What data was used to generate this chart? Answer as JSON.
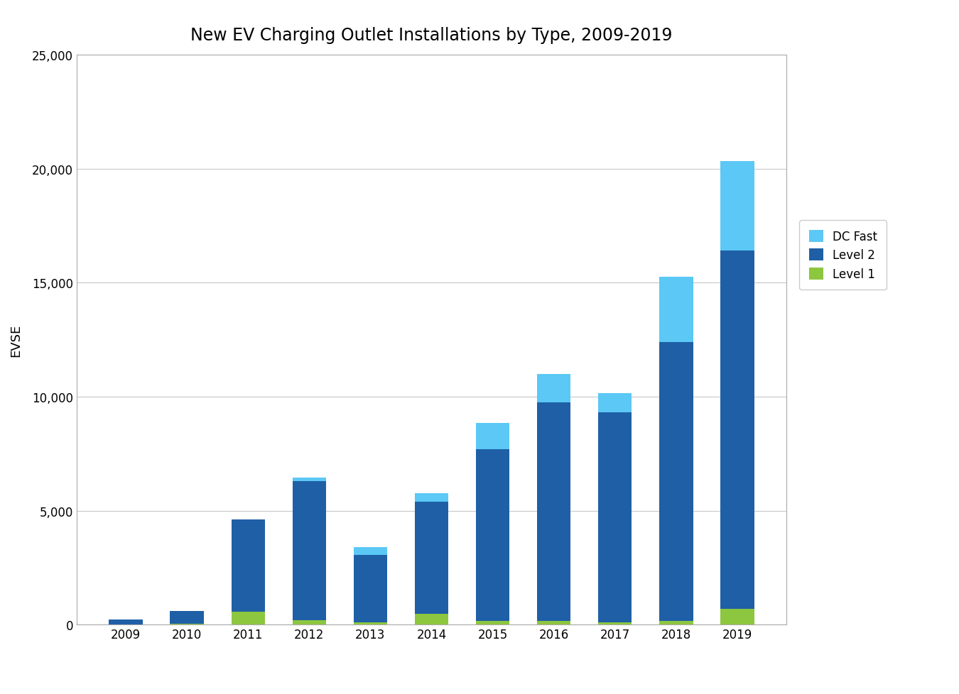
{
  "title": "New EV Charging Outlet Installations by Type, 2009-2019",
  "years": [
    "2009",
    "2010",
    "2011",
    "2012",
    "2013",
    "2014",
    "2015",
    "2016",
    "2017",
    "2018",
    "2019"
  ],
  "level1": [
    10,
    30,
    550,
    180,
    100,
    480,
    150,
    150,
    100,
    150,
    700
  ],
  "level2": [
    200,
    570,
    4050,
    6100,
    2950,
    4900,
    7550,
    9600,
    9200,
    12250,
    15700
  ],
  "dc_fast": [
    0,
    0,
    0,
    180,
    350,
    380,
    1150,
    1250,
    850,
    2850,
    3950
  ],
  "ylabel": "EVSE",
  "ylim": [
    0,
    25000
  ],
  "yticks": [
    0,
    5000,
    10000,
    15000,
    20000,
    25000
  ],
  "color_level1": "#8dc63f",
  "color_level2": "#1f5fa6",
  "color_dc_fast": "#5bc8f5",
  "legend_labels": [
    "DC Fast",
    "Level 2",
    "Level 1"
  ],
  "background_color": "#ffffff",
  "plot_bg_color": "#ffffff",
  "grid_color": "#c8c8c8",
  "bar_width": 0.55,
  "title_fontsize": 17,
  "axis_label_fontsize": 13,
  "tick_fontsize": 12,
  "legend_fontsize": 12
}
